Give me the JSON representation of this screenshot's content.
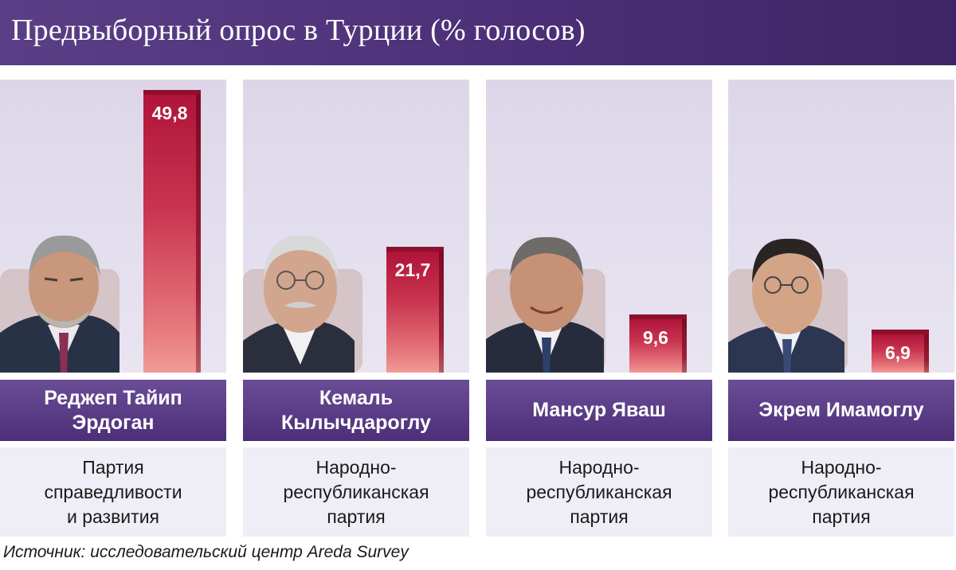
{
  "header": {
    "title": "Предвыборный опрос в Турции (% голосов)"
  },
  "source": "Источник: исследовательский центр Areda Survey",
  "colors": {
    "header": "#4b2f77",
    "bar": "#c02a47",
    "name_box": "#5a3d87",
    "party_box": "#efedf5"
  },
  "candidates": [
    {
      "name": "Реджеп Тайип\nЭрдоган",
      "party": "Партия\nсправедливости\nи развития",
      "value": 49.8,
      "label": "49,8"
    },
    {
      "name": "Кемаль\nКылычдароглу",
      "party": "Народно-\nреспубликанская\nпартия",
      "value": 21.7,
      "label": "21,7"
    },
    {
      "name": "Мансур Яваш",
      "party": "Народно-\nреспубликанская\nпартия",
      "value": 9.6,
      "label": "9,6"
    },
    {
      "name": "Экрем Имамоглу",
      "party": "Народно-\nреспубликанская\nпартия",
      "value": 6.9,
      "label": "6,9"
    }
  ],
  "chart_data": {
    "type": "bar",
    "title": "Предвыборный опрос в Турции (% голосов)",
    "categories": [
      "Реджеп Тайип Эрдоган",
      "Кемаль Кылычдароглу",
      "Мансур Яваш",
      "Экрем Имамоглу"
    ],
    "values": [
      49.8,
      21.7,
      9.6,
      6.9
    ],
    "value_labels": [
      "49,8",
      "21,7",
      "9,6",
      "6,9"
    ],
    "xlabel": "",
    "ylabel": "% голосов",
    "ylim": [
      0,
      50
    ],
    "grid": false,
    "legend": "none"
  }
}
